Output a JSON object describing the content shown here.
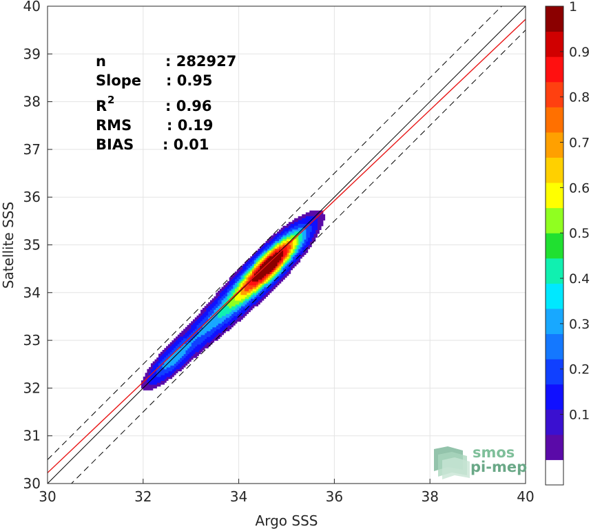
{
  "chart_data": {
    "type": "heatmap",
    "subtype": "filled-contour density scatter",
    "xlabel": "Argo SSS",
    "ylabel": "Satellite SSS",
    "xlim": [
      30,
      40
    ],
    "ylim": [
      30,
      40
    ],
    "x_ticks": [
      "30",
      "32",
      "34",
      "36",
      "38",
      "40"
    ],
    "y_ticks": [
      "30",
      "31",
      "32",
      "33",
      "34",
      "35",
      "36",
      "37",
      "38",
      "39",
      "40"
    ],
    "grid": true,
    "stats": [
      {
        "key": "n",
        "value": ": 282927"
      },
      {
        "key": "Slope",
        "value": ": 0.95"
      },
      {
        "key": "R",
        "sup": "2",
        "value": ": 0.96"
      },
      {
        "key": "RMS",
        "value": ": 0.19"
      },
      {
        "key": "BIAS",
        "value": ": 0.01"
      }
    ],
    "reference_lines": [
      {
        "kind": "one_to_one",
        "color": "#000000",
        "style": "solid"
      },
      {
        "kind": "offset_plus_0.5",
        "color": "#000000",
        "style": "dashed"
      },
      {
        "kind": "offset_minus_0.5",
        "color": "#000000",
        "style": "dashed"
      },
      {
        "kind": "regression_fit",
        "color": "#e81515",
        "style": "solid",
        "slope": 0.95,
        "through": [
          34.5,
          34.5
        ]
      }
    ],
    "density_core": {
      "main_peak": [
        34.7,
        34.65
      ],
      "secondary_peak": [
        32.55,
        32.55
      ],
      "levels": [
        0.05,
        0.1,
        0.2,
        0.3,
        0.4,
        0.5,
        0.6,
        0.7,
        0.8,
        0.9,
        1.0
      ]
    },
    "colorbar": {
      "min": 0,
      "max": 1,
      "tick_labels": [
        "0.1",
        "0.2",
        "0.3",
        "0.4",
        "0.5",
        "0.6",
        "0.7",
        "0.8",
        "0.9",
        "1"
      ],
      "tick_values": [
        0.1,
        0.2,
        0.3,
        0.4,
        0.5,
        0.6,
        0.7,
        0.8,
        0.9,
        1.0
      ],
      "colors": [
        "#ffffff",
        "#5a0aa8",
        "#3a10d0",
        "#1010ff",
        "#1040ff",
        "#1478ff",
        "#18a8ff",
        "#00e8ff",
        "#10f0b0",
        "#20e030",
        "#90ff20",
        "#ffff00",
        "#ffd000",
        "#ffa000",
        "#ff7000",
        "#ff4010",
        "#ff1010",
        "#d00000",
        "#8b0000"
      ]
    }
  },
  "logo": {
    "line1": "smos",
    "line2": "pi-mep"
  }
}
